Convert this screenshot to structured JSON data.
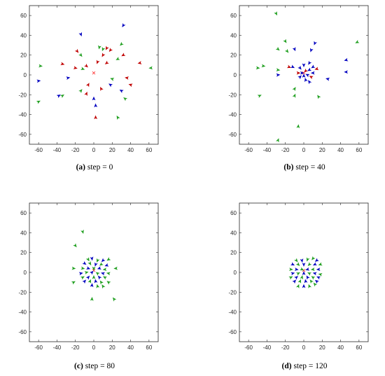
{
  "colors": {
    "red": "#c00000",
    "green": "#22a022",
    "blue": "#0000c0",
    "target": "#ff3333"
  },
  "chart_data": [
    {
      "type": "scatter",
      "caption_letter": "(a)",
      "caption_text": " step = 0",
      "xlim": [
        -70,
        70
      ],
      "ylim": [
        -70,
        70
      ],
      "xticks": [
        -60,
        -40,
        -20,
        0,
        20,
        40,
        60
      ],
      "yticks": [
        -60,
        -40,
        -20,
        0,
        20,
        40,
        60
      ],
      "target": [
        0,
        2
      ],
      "points": [
        {
          "x": -14,
          "y": 41,
          "c": "blue"
        },
        {
          "x": 32,
          "y": 50,
          "c": "blue"
        },
        {
          "x": -18,
          "y": 24,
          "c": "red"
        },
        {
          "x": -14,
          "y": 20,
          "c": "green"
        },
        {
          "x": 6,
          "y": 28,
          "c": "green"
        },
        {
          "x": 10,
          "y": 26,
          "c": "green"
        },
        {
          "x": 14,
          "y": 27,
          "c": "red"
        },
        {
          "x": 18,
          "y": 25,
          "c": "red"
        },
        {
          "x": 30,
          "y": 31,
          "c": "green"
        },
        {
          "x": 32,
          "y": 20,
          "c": "red"
        },
        {
          "x": 26,
          "y": 16,
          "c": "green"
        },
        {
          "x": 50,
          "y": 12,
          "c": "red"
        },
        {
          "x": -58,
          "y": 9,
          "c": "green"
        },
        {
          "x": -34,
          "y": 11,
          "c": "red"
        },
        {
          "x": -20,
          "y": 7,
          "c": "red"
        },
        {
          "x": -12,
          "y": 6,
          "c": "green"
        },
        {
          "x": -8,
          "y": 9,
          "c": "red"
        },
        {
          "x": 4,
          "y": 13,
          "c": "red"
        },
        {
          "x": 10,
          "y": 20,
          "c": "red"
        },
        {
          "x": 14,
          "y": 12,
          "c": "red"
        },
        {
          "x": 62,
          "y": 7,
          "c": "green"
        },
        {
          "x": -60,
          "y": -6,
          "c": "blue"
        },
        {
          "x": -28,
          "y": -3,
          "c": "blue"
        },
        {
          "x": 20,
          "y": -4,
          "c": "green"
        },
        {
          "x": 36,
          "y": -3,
          "c": "red"
        },
        {
          "x": 40,
          "y": -10,
          "c": "red"
        },
        {
          "x": -6,
          "y": -10,
          "c": "red"
        },
        {
          "x": 18,
          "y": -10,
          "c": "blue"
        },
        {
          "x": -14,
          "y": -16,
          "c": "green"
        },
        {
          "x": -8,
          "y": -19,
          "c": "red"
        },
        {
          "x": 8,
          "y": -14,
          "c": "red"
        },
        {
          "x": 30,
          "y": -16,
          "c": "blue"
        },
        {
          "x": -38,
          "y": -21,
          "c": "blue"
        },
        {
          "x": -34,
          "y": -21,
          "c": "green"
        },
        {
          "x": 0,
          "y": -24,
          "c": "blue"
        },
        {
          "x": 34,
          "y": -24,
          "c": "green"
        },
        {
          "x": 2,
          "y": -31,
          "c": "blue"
        },
        {
          "x": -60,
          "y": -27,
          "c": "green"
        },
        {
          "x": 2,
          "y": -43,
          "c": "red"
        },
        {
          "x": 26,
          "y": -43,
          "c": "green"
        }
      ]
    },
    {
      "type": "scatter",
      "caption_letter": "(b)",
      "caption_text": " step = 40",
      "xlim": [
        -70,
        70
      ],
      "ylim": [
        -70,
        70
      ],
      "xticks": [
        -60,
        -40,
        -20,
        0,
        20,
        40,
        60
      ],
      "yticks": [
        -60,
        -40,
        -20,
        0,
        20,
        40,
        60
      ],
      "target": [
        0,
        2
      ],
      "points": [
        {
          "x": -30,
          "y": 62,
          "c": "green"
        },
        {
          "x": -20,
          "y": 34,
          "c": "green"
        },
        {
          "x": -28,
          "y": 26,
          "c": "green"
        },
        {
          "x": -18,
          "y": 24,
          "c": "green"
        },
        {
          "x": -10,
          "y": 26,
          "c": "blue"
        },
        {
          "x": 12,
          "y": 32,
          "c": "blue"
        },
        {
          "x": 8,
          "y": 25,
          "c": "blue"
        },
        {
          "x": 58,
          "y": 33,
          "c": "green"
        },
        {
          "x": 46,
          "y": 15,
          "c": "blue"
        },
        {
          "x": 46,
          "y": 3,
          "c": "blue"
        },
        {
          "x": -50,
          "y": 7,
          "c": "green"
        },
        {
          "x": -44,
          "y": 9,
          "c": "green"
        },
        {
          "x": -28,
          "y": 5,
          "c": "green"
        },
        {
          "x": -28,
          "y": 0,
          "c": "blue"
        },
        {
          "x": -16,
          "y": 8,
          "c": "red"
        },
        {
          "x": -12,
          "y": 8,
          "c": "blue"
        },
        {
          "x": -4,
          "y": 7,
          "c": "blue"
        },
        {
          "x": 0,
          "y": 10,
          "c": "blue"
        },
        {
          "x": 6,
          "y": 12,
          "c": "blue"
        },
        {
          "x": 10,
          "y": 8,
          "c": "blue"
        },
        {
          "x": 14,
          "y": 6,
          "c": "red"
        },
        {
          "x": -6,
          "y": 2,
          "c": "red"
        },
        {
          "x": -2,
          "y": 2,
          "c": "blue"
        },
        {
          "x": 2,
          "y": 4,
          "c": "red"
        },
        {
          "x": 6,
          "y": 5,
          "c": "blue"
        },
        {
          "x": 10,
          "y": 2,
          "c": "blue"
        },
        {
          "x": -4,
          "y": -2,
          "c": "blue"
        },
        {
          "x": 0,
          "y": -1,
          "c": "blue"
        },
        {
          "x": 4,
          "y": 0,
          "c": "blue"
        },
        {
          "x": 8,
          "y": -2,
          "c": "red"
        },
        {
          "x": 2,
          "y": -5,
          "c": "blue"
        },
        {
          "x": 6,
          "y": -7,
          "c": "blue"
        },
        {
          "x": 26,
          "y": -4,
          "c": "blue"
        },
        {
          "x": -10,
          "y": -14,
          "c": "green"
        },
        {
          "x": -10,
          "y": -21,
          "c": "green"
        },
        {
          "x": 16,
          "y": -22,
          "c": "green"
        },
        {
          "x": -48,
          "y": -21,
          "c": "green"
        },
        {
          "x": -6,
          "y": -52,
          "c": "green"
        },
        {
          "x": -28,
          "y": -66,
          "c": "green"
        }
      ]
    },
    {
      "type": "scatter",
      "caption_letter": "(c)",
      "caption_text": " step = 80",
      "xlim": [
        -70,
        70
      ],
      "ylim": [
        -70,
        70
      ],
      "xticks": [
        -60,
        -40,
        -20,
        0,
        20,
        40,
        60
      ],
      "yticks": [
        -60,
        -40,
        -20,
        0,
        20,
        40,
        60
      ],
      "target": [
        0,
        2
      ],
      "points": [
        {
          "x": -12,
          "y": 41,
          "c": "green"
        },
        {
          "x": -20,
          "y": 27,
          "c": "green"
        },
        {
          "x": -6,
          "y": 13,
          "c": "green"
        },
        {
          "x": -2,
          "y": 14,
          "c": "blue"
        },
        {
          "x": 4,
          "y": 12,
          "c": "green"
        },
        {
          "x": 10,
          "y": 12,
          "c": "blue"
        },
        {
          "x": 16,
          "y": 13,
          "c": "green"
        },
        {
          "x": -10,
          "y": 9,
          "c": "blue"
        },
        {
          "x": -4,
          "y": 9,
          "c": "green"
        },
        {
          "x": 2,
          "y": 8,
          "c": "blue"
        },
        {
          "x": 8,
          "y": 8,
          "c": "green"
        },
        {
          "x": 14,
          "y": 7,
          "c": "blue"
        },
        {
          "x": -22,
          "y": 4,
          "c": "green"
        },
        {
          "x": -12,
          "y": 4,
          "c": "green"
        },
        {
          "x": -6,
          "y": 4,
          "c": "blue"
        },
        {
          "x": 0,
          "y": 4,
          "c": "green"
        },
        {
          "x": 6,
          "y": 4,
          "c": "blue"
        },
        {
          "x": 12,
          "y": 3,
          "c": "green"
        },
        {
          "x": 24,
          "y": 4,
          "c": "green"
        },
        {
          "x": -14,
          "y": -1,
          "c": "blue"
        },
        {
          "x": -8,
          "y": 0,
          "c": "green"
        },
        {
          "x": -2,
          "y": 0,
          "c": "blue"
        },
        {
          "x": 4,
          "y": -1,
          "c": "green"
        },
        {
          "x": 10,
          "y": -1,
          "c": "blue"
        },
        {
          "x": 16,
          "y": -1,
          "c": "green"
        },
        {
          "x": -12,
          "y": -5,
          "c": "green"
        },
        {
          "x": -6,
          "y": -5,
          "c": "blue"
        },
        {
          "x": 0,
          "y": -5,
          "c": "green"
        },
        {
          "x": 6,
          "y": -5,
          "c": "blue"
        },
        {
          "x": 12,
          "y": -5,
          "c": "green"
        },
        {
          "x": -22,
          "y": -10,
          "c": "green"
        },
        {
          "x": -10,
          "y": -9,
          "c": "blue"
        },
        {
          "x": -4,
          "y": -9,
          "c": "green"
        },
        {
          "x": 2,
          "y": -9,
          "c": "blue"
        },
        {
          "x": 8,
          "y": -10,
          "c": "green"
        },
        {
          "x": 16,
          "y": -10,
          "c": "green"
        },
        {
          "x": -2,
          "y": -13,
          "c": "blue"
        },
        {
          "x": 4,
          "y": -14,
          "c": "green"
        },
        {
          "x": 10,
          "y": -14,
          "c": "green"
        },
        {
          "x": 22,
          "y": -27,
          "c": "green"
        },
        {
          "x": -2,
          "y": -27,
          "c": "green"
        }
      ]
    },
    {
      "type": "scatter",
      "caption_letter": "(d)",
      "caption_text": " step = 120",
      "xlim": [
        -70,
        70
      ],
      "ylim": [
        -70,
        70
      ],
      "xticks": [
        -60,
        -40,
        -20,
        0,
        20,
        40,
        60
      ],
      "yticks": [
        -60,
        -40,
        -20,
        0,
        20,
        40,
        60
      ],
      "target": [
        0,
        2
      ],
      "points": [
        {
          "x": -8,
          "y": 12,
          "c": "green"
        },
        {
          "x": -2,
          "y": 12,
          "c": "blue"
        },
        {
          "x": 4,
          "y": 13,
          "c": "green"
        },
        {
          "x": 10,
          "y": 14,
          "c": "green"
        },
        {
          "x": 14,
          "y": 12,
          "c": "blue"
        },
        {
          "x": -12,
          "y": 8,
          "c": "blue"
        },
        {
          "x": -6,
          "y": 8,
          "c": "green"
        },
        {
          "x": 0,
          "y": 8,
          "c": "blue"
        },
        {
          "x": 6,
          "y": 8,
          "c": "green"
        },
        {
          "x": 12,
          "y": 8,
          "c": "blue"
        },
        {
          "x": 18,
          "y": 8,
          "c": "green"
        },
        {
          "x": -14,
          "y": 3,
          "c": "green"
        },
        {
          "x": -8,
          "y": 3,
          "c": "blue"
        },
        {
          "x": -2,
          "y": 3,
          "c": "green"
        },
        {
          "x": 4,
          "y": 3,
          "c": "blue"
        },
        {
          "x": 10,
          "y": 3,
          "c": "green"
        },
        {
          "x": 16,
          "y": 3,
          "c": "blue"
        },
        {
          "x": -12,
          "y": -1,
          "c": "blue"
        },
        {
          "x": -6,
          "y": -1,
          "c": "green"
        },
        {
          "x": 0,
          "y": -1,
          "c": "blue"
        },
        {
          "x": 6,
          "y": -1,
          "c": "green"
        },
        {
          "x": 12,
          "y": -1,
          "c": "blue"
        },
        {
          "x": 18,
          "y": -2,
          "c": "green"
        },
        {
          "x": -14,
          "y": -5,
          "c": "green"
        },
        {
          "x": -8,
          "y": -5,
          "c": "blue"
        },
        {
          "x": -2,
          "y": -5,
          "c": "green"
        },
        {
          "x": 4,
          "y": -5,
          "c": "blue"
        },
        {
          "x": 10,
          "y": -5,
          "c": "green"
        },
        {
          "x": 16,
          "y": -5,
          "c": "blue"
        },
        {
          "x": -10,
          "y": -9,
          "c": "blue"
        },
        {
          "x": -4,
          "y": -9,
          "c": "green"
        },
        {
          "x": 2,
          "y": -9,
          "c": "blue"
        },
        {
          "x": 8,
          "y": -9,
          "c": "green"
        },
        {
          "x": 14,
          "y": -9,
          "c": "blue"
        },
        {
          "x": -6,
          "y": -14,
          "c": "green"
        },
        {
          "x": 0,
          "y": -14,
          "c": "blue"
        },
        {
          "x": 6,
          "y": -14,
          "c": "green"
        },
        {
          "x": 12,
          "y": -12,
          "c": "green"
        }
      ]
    }
  ]
}
